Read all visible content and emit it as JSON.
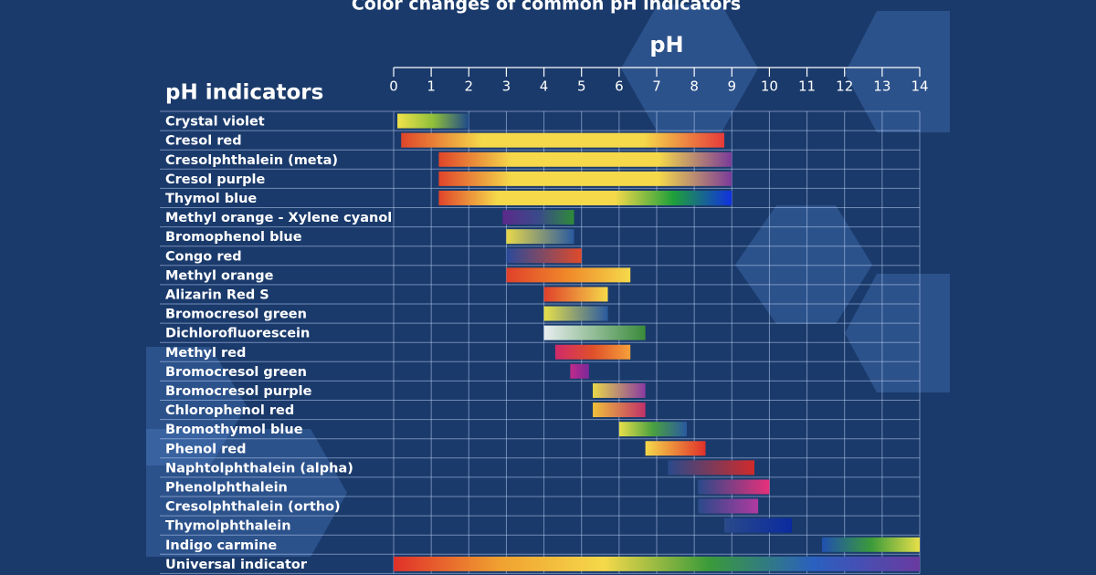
{
  "chart_data": {
    "type": "range-bar",
    "title": "Color changes of common pH indicators",
    "x_label": "pH",
    "y_label": "pH indicators",
    "xlim": [
      0,
      14
    ],
    "xticks": [
      0,
      1,
      2,
      3,
      4,
      5,
      6,
      7,
      8,
      9,
      10,
      11,
      12,
      13,
      14
    ],
    "grid": true,
    "categories": [
      "Crystal violet",
      "Cresol red",
      "Cresolphthalein (meta)",
      "Cresol purple",
      "Thymol blue",
      "Methyl orange - Xylene cyanol",
      "Bromophenol blue",
      "Congo red",
      "Methyl orange",
      "Alizarin Red S",
      "Bromocresol green",
      "Dichlorofluorescein",
      "Methyl red",
      "Bromocresol green",
      "Bromocresol purple",
      "Chlorophenol red",
      "Bromothymol blue",
      "Phenol red",
      "Naphtolphthalein (alpha)",
      "Phenolphthalein",
      "Cresolphthalein (ortho)",
      "Thymolphthalein",
      "Indigo carmine",
      "Universal indicator"
    ],
    "ranges": [
      [
        0.1,
        2.0
      ],
      [
        0.2,
        8.8
      ],
      [
        1.2,
        9.0
      ],
      [
        1.2,
        9.0
      ],
      [
        1.2,
        9.0
      ],
      [
        2.9,
        4.8
      ],
      [
        3.0,
        4.8
      ],
      [
        3.0,
        5.0
      ],
      [
        3.0,
        6.3
      ],
      [
        4.0,
        5.7
      ],
      [
        4.0,
        5.7
      ],
      [
        4.0,
        6.7
      ],
      [
        4.3,
        6.3
      ],
      [
        4.7,
        5.2
      ],
      [
        5.3,
        6.7
      ],
      [
        5.3,
        6.7
      ],
      [
        6.0,
        7.8
      ],
      [
        6.7,
        8.3
      ],
      [
        7.3,
        9.6
      ],
      [
        8.1,
        10.0
      ],
      [
        8.1,
        9.7
      ],
      [
        8.8,
        10.6
      ],
      [
        11.4,
        14.0
      ],
      [
        0.0,
        14.0
      ]
    ],
    "colors": [
      [
        "#f2e34a",
        "#8fbf3a",
        "#1f4a8a"
      ],
      [
        "#e0442a",
        "#f5d94a",
        "#f5d94a",
        "#f5d94a",
        "#e63a3a"
      ],
      [
        "#e0442a",
        "#f5d94a",
        "#f5d94a",
        "#f5d94a",
        "#7a3a9a"
      ],
      [
        "#e0442a",
        "#f5d94a",
        "#f5d94a",
        "#f5d94a",
        "#7a3a9a"
      ],
      [
        "#e0442a",
        "#f5d94a",
        "#f5d94a",
        "#f5d94a",
        "#1fa03a",
        "#1030e0"
      ],
      [
        "#5a2a8a",
        "#3a4a8a",
        "#2f8a3a"
      ],
      [
        "#e8d84a",
        "#2a5aa0"
      ],
      [
        "#2a4a9a",
        "#e04a2a"
      ],
      [
        "#e0402a",
        "#f08a2a",
        "#f5d94a"
      ],
      [
        "#e0402a",
        "#f5d94a"
      ],
      [
        "#e8e04a",
        "#2a5aa0"
      ],
      [
        "#e8eef0",
        "#3a8a3a"
      ],
      [
        "#d02a6a",
        "#e0502a",
        "#f5a03a"
      ],
      [
        "#c02a8a",
        "#7a2a9a"
      ],
      [
        "#e8d84a",
        "#8a3aa0"
      ],
      [
        "#f0c03a",
        "#c0306a"
      ],
      [
        "#e8e04a",
        "#4aa040",
        "#2a5aa0"
      ],
      [
        "#f5d94a",
        "#e0302a"
      ],
      [
        "#2a4a8a",
        "#d02a2a"
      ],
      [
        "#2a4a8a",
        "#e8307a"
      ],
      [
        "#2a4a8a",
        "#b03aa0"
      ],
      [
        "#2a4a8a",
        "#0a2aa0"
      ],
      [
        "#2050b0",
        "#3a9a3a",
        "#e8e04a"
      ],
      [
        "#e0302a",
        "#f0a030",
        "#f5d94a",
        "#3a9a3a",
        "#2a60c0",
        "#6a3aa0"
      ]
    ]
  }
}
